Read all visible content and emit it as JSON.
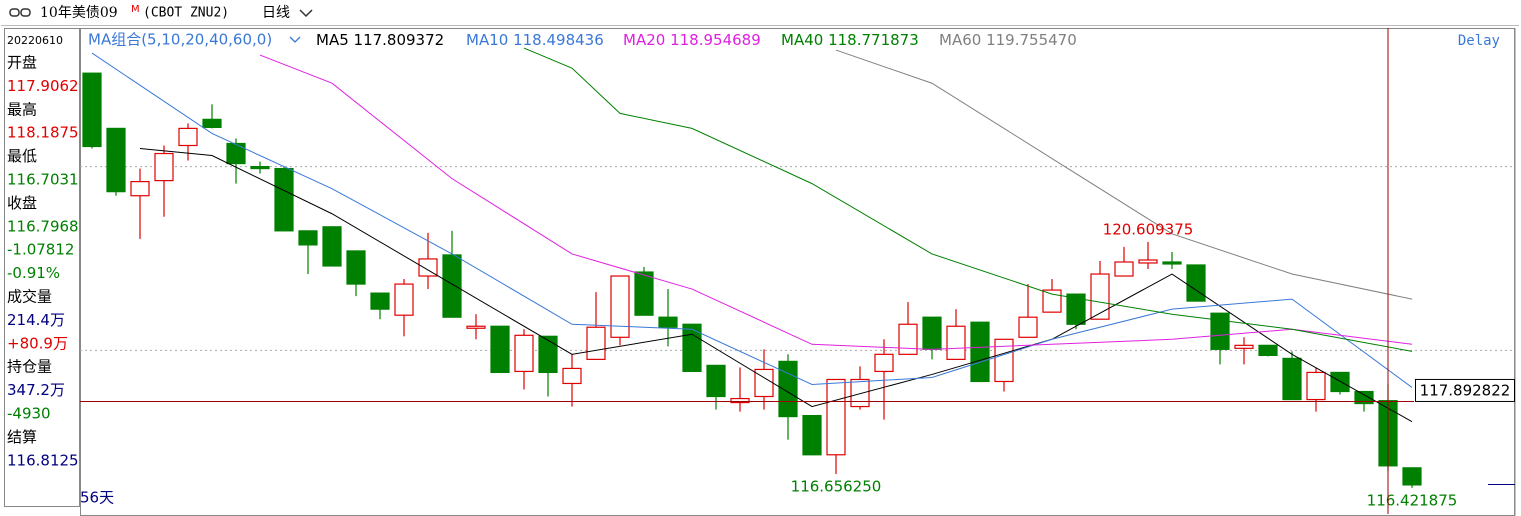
{
  "toolbar": {
    "title": "10年美债09",
    "badge": "M",
    "symbol": "(CBOT ZNU2)",
    "period": "日线"
  },
  "info_panel": {
    "date": "20220610",
    "lines": [
      {
        "text": "开盘",
        "color": "#000000"
      },
      {
        "text": "117.9062",
        "color": "#e00000"
      },
      {
        "text": "最高",
        "color": "#000000"
      },
      {
        "text": "118.1875",
        "color": "#e00000"
      },
      {
        "text": "最低",
        "color": "#000000"
      },
      {
        "text": "116.7031",
        "color": "#008000"
      },
      {
        "text": "收盘",
        "color": "#000000"
      },
      {
        "text": "116.7968",
        "color": "#008000"
      },
      {
        "text": "-1.07812",
        "color": "#008000"
      },
      {
        "text": "-0.91%",
        "color": "#008000"
      },
      {
        "text": "成交量",
        "color": "#000000"
      },
      {
        "text": "214.4万",
        "color": "#000080"
      },
      {
        "text": "+80.9万",
        "color": "#e00000"
      },
      {
        "text": "持仓量",
        "color": "#000000"
      },
      {
        "text": "347.2万",
        "color": "#000080"
      },
      {
        "text": "-4930",
        "color": "#008000"
      },
      {
        "text": "结算",
        "color": "#000000"
      },
      {
        "text": "116.8125",
        "color": "#000080"
      }
    ]
  },
  "chart_data": {
    "type": "candlestick",
    "legend_title": "MA组合(5,10,20,40,60,0)",
    "delay_label": "Delay",
    "footer_label": "56天",
    "ylim": [
      115.977,
      124.25
    ],
    "yticks": [
      118.763,
      121.891
    ],
    "grid": true,
    "up_color": "#e00000",
    "down_color": "#008000",
    "open": [
      123.481,
      122.541,
      121.395,
      121.652,
      122.25,
      122.695,
      122.284,
      121.891,
      121.857,
      120.797,
      120.866,
      120.455,
      119.737,
      119.361,
      120.028,
      120.387,
      119.139,
      119.173,
      118.404,
      119.002,
      118.199,
      118.609,
      118.985,
      120.096,
      119.327,
      119.207,
      118.507,
      117.874,
      117.977,
      118.575,
      117.652,
      116.985,
      117.806,
      118.404,
      118.695,
      119.327,
      118.609,
      119.242,
      118.233,
      118.985,
      119.413,
      119.72,
      119.293,
      120.028,
      120.25,
      120.267,
      120.216,
      119.395,
      118.797,
      118.848,
      118.626,
      117.925,
      118.387,
      118.062,
      117.9062,
      116.763
    ],
    "high": [
      123.481,
      122.541,
      121.857,
      122.25,
      122.626,
      122.951,
      122.37,
      121.977,
      121.891,
      120.797,
      120.866,
      120.455,
      119.737,
      119.977,
      120.763,
      120.797,
      119.378,
      119.173,
      119.122,
      119.002,
      118.695,
      119.754,
      120.028,
      120.182,
      119.806,
      119.207,
      118.507,
      118.472,
      118.78,
      118.695,
      117.652,
      118.267,
      118.49,
      118.951,
      119.584,
      119.327,
      119.464,
      119.242,
      118.951,
      119.891,
      119.977,
      119.72,
      120.284,
      120.524,
      120.609375,
      120.438,
      120.216,
      119.395,
      118.985,
      118.848,
      118.746,
      118.472,
      118.387,
      118.062,
      118.1875,
      116.763
    ],
    "low": [
      122.199,
      121.395,
      120.66,
      121.037,
      121.994,
      122.541,
      121.601,
      121.772,
      120.797,
      120.062,
      120.199,
      119.686,
      119.293,
      119.002,
      119.806,
      119.327,
      118.951,
      118.387,
      118.096,
      117.977,
      117.806,
      118.609,
      118.848,
      119.361,
      118.831,
      118.404,
      117.754,
      117.72,
      117.754,
      117.242,
      116.985,
      116.65625,
      117.754,
      117.584,
      118.695,
      118.609,
      118.609,
      118.233,
      118.062,
      118.985,
      119.413,
      119.122,
      119.293,
      120.028,
      120.148,
      120.148,
      119.601,
      118.524,
      118.524,
      118.66,
      117.925,
      117.72,
      118.011,
      117.72,
      116.7031,
      116.421875
    ],
    "close": [
      122.233,
      121.464,
      121.635,
      122.113,
      122.541,
      122.558,
      121.942,
      121.857,
      120.797,
      120.558,
      120.199,
      119.891,
      119.464,
      119.891,
      120.319,
      119.327,
      119.173,
      118.387,
      119.019,
      118.387,
      118.455,
      119.156,
      120.028,
      119.361,
      119.156,
      118.404,
      117.977,
      117.942,
      118.438,
      117.635,
      116.985,
      118.267,
      118.267,
      118.695,
      119.207,
      118.78,
      119.173,
      118.233,
      118.951,
      119.327,
      119.789,
      119.207,
      120.062,
      120.267,
      120.301,
      120.233,
      119.601,
      118.78,
      118.848,
      118.677,
      117.925,
      118.387,
      118.062,
      117.857,
      116.7968,
      116.472
    ],
    "series": [
      {
        "name": "MA5",
        "color": "#000000",
        "legend_value": 117.809372,
        "x": [
          2,
          5,
          10,
          15,
          20,
          25,
          30,
          35,
          40,
          45,
          50,
          55
        ],
        "values": [
          122.199,
          122.079,
          121.088,
          119.891,
          118.695,
          119.037,
          117.806,
          118.353,
          118.951,
          120.062,
          118.695,
          117.549
        ]
      },
      {
        "name": "MA10",
        "color": "#3a78d8",
        "legend_value": 118.498436,
        "x": [
          0,
          5,
          10,
          15,
          20,
          25,
          30,
          35,
          40,
          45,
          50,
          55
        ],
        "values": [
          123.823,
          122.455,
          121.515,
          120.404,
          119.207,
          119.122,
          118.182,
          118.301,
          118.951,
          119.464,
          119.635,
          118.131
        ]
      },
      {
        "name": "MA20",
        "color": "#e020e0",
        "legend_value": 118.954689,
        "x": [
          7,
          10,
          15,
          20,
          25,
          30,
          35,
          40,
          45,
          50,
          55
        ],
        "values": [
          123.789,
          123.31,
          121.686,
          120.404,
          119.806,
          118.866,
          118.78,
          118.866,
          118.951,
          119.122,
          118.866
        ]
      },
      {
        "name": "MA40",
        "color": "#008000",
        "legend_value": 118.771873,
        "x": [
          18,
          20,
          22,
          25,
          30,
          35,
          40,
          45,
          50,
          55
        ],
        "values": [
          123.908,
          123.566,
          122.797,
          122.541,
          121.601,
          120.404,
          119.72,
          119.378,
          119.122,
          118.746
        ]
      },
      {
        "name": "MA60",
        "color": "#808080",
        "legend_value": {
          "value": 119.75547,
          "label": "119.755470"
        },
        "x": [
          31,
          35,
          40,
          45,
          50,
          55
        ],
        "values": [
          123.874,
          123.31,
          122.028,
          120.746,
          120.062,
          119.635
        ]
      }
    ],
    "annotations": [
      {
        "index": 44,
        "value": 120.609375,
        "color": "#e00000"
      },
      {
        "index": 31,
        "value": {
          "value": 116.65625,
          "label": "116.656250"
        },
        "color": "#008000"
      },
      {
        "index": 55,
        "value": 116.421875,
        "color": "#008000"
      }
    ],
    "crosshair": {
      "index": 54,
      "value": 117.892822
    }
  }
}
